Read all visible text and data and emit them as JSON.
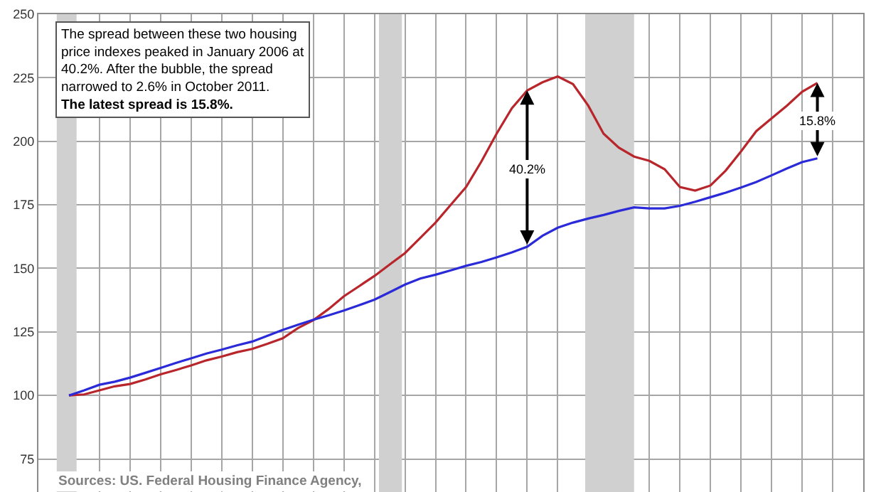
{
  "chart_data": {
    "type": "line",
    "categories": [
      null,
      null,
      null,
      null,
      null,
      null,
      null,
      null,
      null,
      null,
      null,
      null,
      null,
      null,
      null,
      null,
      null,
      null,
      null,
      null,
      null,
      null,
      null,
      null,
      null,
      null,
      null,
      null,
      null,
      null,
      null,
      null,
      null,
      null,
      null,
      null,
      null,
      null,
      null,
      null,
      null,
      null,
      null,
      null,
      null,
      null,
      null,
      null,
      null,
      null,
      null,
      null,
      null
    ],
    "series": [
      {
        "color": "#b8262b",
        "values": [
          null,
          100,
          100.4,
          102,
          103.6,
          104.5,
          106.3,
          108.3,
          110,
          111.8,
          113.8,
          115.3,
          117,
          118.3,
          120.3,
          122.5,
          126.5,
          129.6,
          134,
          139,
          143,
          147,
          151.5,
          156,
          162,
          168,
          175,
          182,
          192,
          203,
          213,
          220,
          223.2,
          225.5,
          222.5,
          214,
          203,
          197.5,
          194,
          192.3,
          189,
          182,
          180.6,
          182.6,
          188.5,
          196,
          204,
          209,
          214,
          219.5,
          223,
          null,
          null
        ]
      },
      {
        "color": "#2a2ad8",
        "values": [
          null,
          100,
          102,
          104.2,
          105.4,
          107,
          108.9,
          110.8,
          112.8,
          114.6,
          116.5,
          118,
          119.7,
          121.2,
          123.5,
          125.8,
          127.8,
          129.8,
          131.5,
          133.4,
          135.5,
          137.7,
          140.6,
          143.6,
          146,
          147.5,
          149.2,
          151,
          152.5,
          154.3,
          156.3,
          158.5,
          162.8,
          166,
          168,
          169.6,
          171,
          172.6,
          174,
          173.6,
          173.6,
          174.6,
          176.2,
          178,
          179.8,
          181.8,
          184,
          186.6,
          189.3,
          191.8,
          193.3,
          null,
          null
        ]
      }
    ],
    "ylim": [
      62,
      250
    ],
    "yticks": [
      75,
      100,
      125,
      150,
      175,
      200,
      225,
      250
    ],
    "tick_labels": "y",
    "grid": true,
    "annotations": [
      "The spread between these two housing price indexes peaked in January 2006 at 40.2%. After the bubble, the spread narrowed to 2.6% in October 2011.",
      "The latest spread is 15.8%.",
      "40.2%",
      "15.8%",
      "Sources: US. Federal Housing Finance Agency,"
    ]
  }
}
